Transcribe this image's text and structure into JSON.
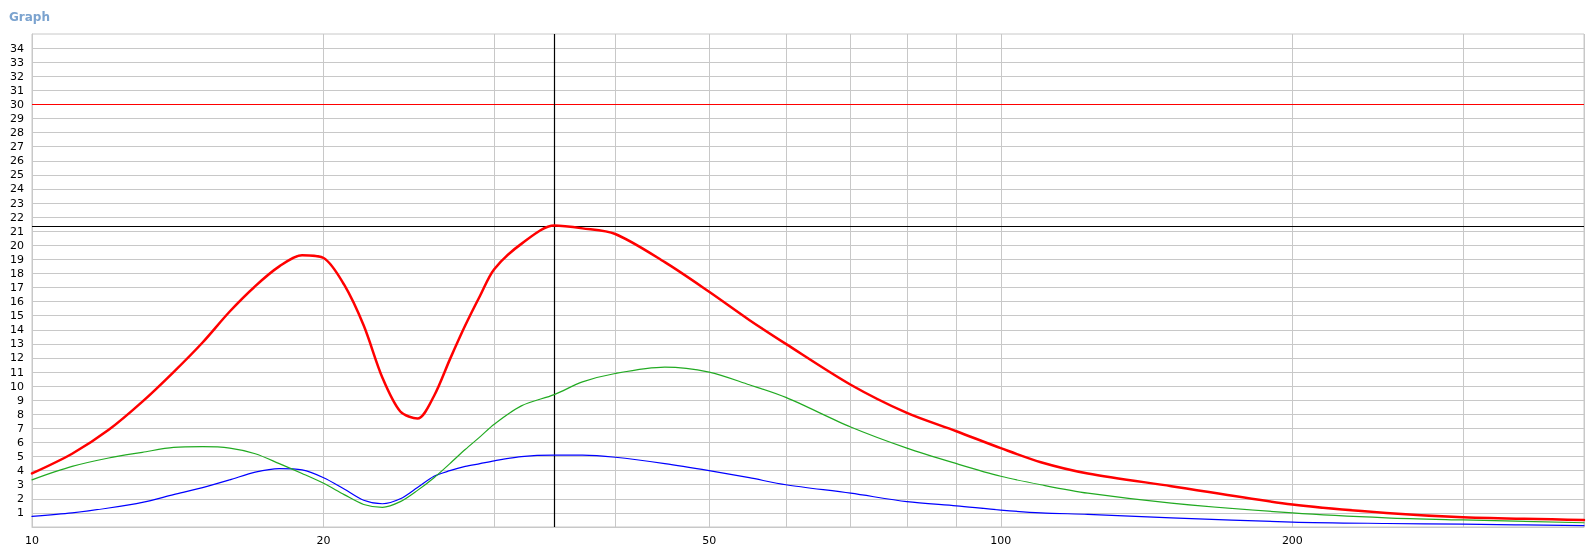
{
  "chart_data": {
    "type": "line",
    "title": "Graph",
    "x": [
      10,
      11,
      12,
      13,
      14,
      15,
      16,
      17,
      18,
      19,
      20,
      21,
      22,
      23,
      24,
      25,
      26,
      27,
      28,
      29,
      30,
      32,
      34.6,
      37,
      40,
      45,
      50,
      55,
      60,
      70,
      80,
      90,
      100,
      110,
      123,
      150,
      200,
      250,
      300,
      400
    ],
    "series": [
      {
        "color": "#ff0000",
        "values": [
          3.8,
          5.2,
          6.9,
          8.9,
          11.0,
          13.1,
          15.3,
          17.1,
          18.5,
          19.3,
          19.1,
          17.2,
          14.3,
          10.6,
          8.2,
          7.7,
          9.3,
          11.9,
          14.3,
          16.4,
          18.3,
          20.1,
          21.4,
          21.2,
          20.8,
          18.8,
          16.7,
          14.7,
          13.0,
          10.1,
          8.1,
          6.8,
          5.6,
          4.6,
          3.8,
          2.9,
          1.6,
          1.0,
          0.7,
          0.5
        ]
      },
      {
        "color": "#22aa22",
        "values": [
          3.35,
          4.3,
          4.9,
          5.3,
          5.65,
          5.7,
          5.6,
          5.2,
          4.5,
          3.8,
          3.1,
          2.3,
          1.6,
          1.4,
          1.8,
          2.6,
          3.5,
          4.5,
          5.5,
          6.4,
          7.3,
          8.6,
          9.4,
          10.3,
          10.9,
          11.35,
          11.0,
          10.1,
          9.2,
          7.1,
          5.6,
          4.5,
          3.6,
          3.0,
          2.4,
          1.7,
          1.0,
          0.65,
          0.5,
          0.3
        ]
      },
      {
        "color": "#0000ff",
        "values": [
          0.75,
          1.0,
          1.35,
          1.75,
          2.3,
          2.8,
          3.35,
          3.9,
          4.15,
          4.05,
          3.5,
          2.7,
          1.9,
          1.65,
          2.0,
          2.8,
          3.6,
          4.0,
          4.3,
          4.5,
          4.7,
          5.0,
          5.1,
          5.1,
          4.95,
          4.5,
          4.0,
          3.5,
          3.0,
          2.4,
          1.8,
          1.5,
          1.2,
          1.0,
          0.9,
          0.65,
          0.35,
          0.25,
          0.2,
          0.1
        ]
      }
    ],
    "log": "x",
    "xlim": [
      10,
      400
    ],
    "xticks": [
      10,
      20,
      {
        "value": 30,
        "label": null
      },
      {
        "value": 40,
        "label": null
      },
      50,
      {
        "value": 60,
        "label": null
      },
      {
        "value": 70,
        "label": null
      },
      {
        "value": 80,
        "label": null
      },
      {
        "value": 90,
        "label": null
      },
      100,
      200,
      {
        "value": 300,
        "label": null
      },
      {
        "value": 400,
        "label": null
      }
    ],
    "ylim": [
      0,
      35
    ],
    "yticks": [
      1,
      2,
      3,
      4,
      5,
      6,
      7,
      8,
      9,
      10,
      11,
      12,
      13,
      14,
      15,
      16,
      17,
      18,
      19,
      20,
      21,
      22,
      23,
      24,
      25,
      26,
      27,
      28,
      29,
      30,
      31,
      32,
      33,
      34
    ],
    "ref_lines": [
      {
        "axis": "y",
        "value": 30,
        "color": "#ff0000"
      },
      {
        "axis": "y",
        "value": 21.35,
        "color": "#000000"
      },
      {
        "axis": "x",
        "value": 34.6,
        "color": "#000000"
      }
    ],
    "grid": true,
    "marker": "none",
    "line_style": "solid"
  }
}
